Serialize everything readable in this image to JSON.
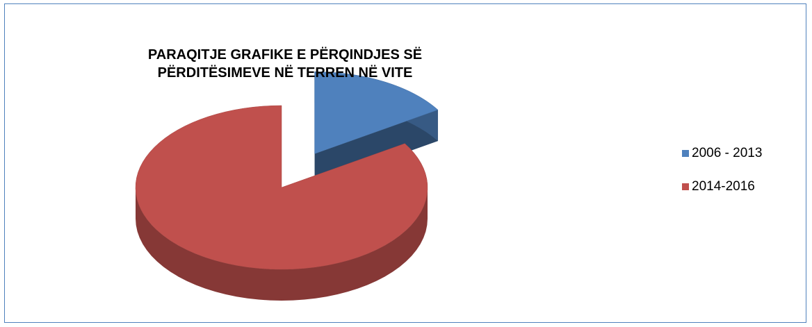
{
  "chart_data": {
    "type": "pie",
    "title": "PARAQITJE GRAFIKE E PËRQINDJES SË PËRDITËSIMEVE NË TERREN NË VITE",
    "categories": [
      "2006 - 2013",
      "2014-2016"
    ],
    "values": [
      16,
      84
    ],
    "colors": [
      "#4f81bd",
      "#c0504d"
    ],
    "legend": "right"
  }
}
